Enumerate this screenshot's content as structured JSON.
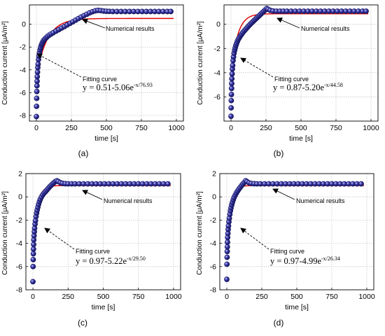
{
  "chart_data": [
    {
      "panel_label": "(a)",
      "type": "scatter",
      "xlabel": "time [s]",
      "ylabel": "Conduction current [μA/m²]",
      "xlim": [
        -50,
        1050
      ],
      "ylim": [
        -8.5,
        1.7
      ],
      "xticks": [
        0,
        250,
        500,
        750,
        1000
      ],
      "yticks": [
        -8,
        -6,
        -4,
        -2,
        0
      ],
      "grid": true,
      "series": [
        {
          "name": "Numerical results",
          "style": "markers",
          "x": [
            0,
            1,
            2,
            3,
            4,
            5,
            6,
            8,
            10,
            12,
            15,
            18,
            22,
            26,
            30,
            35,
            40,
            46,
            52,
            60,
            70,
            80,
            92,
            105,
            120,
            140,
            160,
            180,
            200,
            220,
            240,
            260,
            280,
            300,
            320,
            340,
            360,
            380,
            400,
            420,
            440,
            460,
            480,
            500,
            520,
            545,
            575,
            605,
            635,
            665,
            695,
            725,
            755,
            785,
            815,
            845,
            875,
            905,
            935,
            960
          ],
          "y": [
            -8.1,
            -7.2,
            -6.5,
            -5.9,
            -5.4,
            -5.0,
            -4.6,
            -4.2,
            -3.8,
            -3.5,
            -3.1,
            -2.8,
            -2.5,
            -2.25,
            -2.05,
            -1.85,
            -1.7,
            -1.55,
            -1.42,
            -1.3,
            -1.18,
            -1.06,
            -0.95,
            -0.85,
            -0.74,
            -0.6,
            -0.47,
            -0.33,
            -0.2,
            -0.06,
            0.08,
            0.22,
            0.36,
            0.5,
            0.63,
            0.76,
            0.88,
            1.0,
            1.1,
            1.18,
            1.22,
            1.2,
            1.16,
            1.14,
            1.13,
            1.12,
            1.12,
            1.12,
            1.12,
            1.12,
            1.12,
            1.12,
            1.12,
            1.12,
            1.12,
            1.12,
            1.12,
            1.12,
            1.12,
            1.12
          ]
        },
        {
          "name": "Fitting curve",
          "style": "line",
          "color": "#e00000",
          "fit": {
            "a": 0.51,
            "b": 5.06,
            "tau": 76.93
          },
          "x_range": [
            0,
            980
          ]
        }
      ],
      "annotations": [
        {
          "text": "Numerical results"
        },
        {
          "text": "Fitting curve"
        },
        {
          "text_parts": {
            "base": "y = 0.51-5.06e",
            "exp": "-x/76.93"
          }
        }
      ]
    },
    {
      "panel_label": "(b)",
      "type": "scatter",
      "xlabel": "time [s]",
      "ylabel": "Conduction current [μA/m²]",
      "xlim": [
        -50,
        1050
      ],
      "ylim": [
        -8.0,
        1.6
      ],
      "xticks": [
        0,
        250,
        500,
        750,
        1000
      ],
      "yticks": [
        -6,
        -4,
        -2,
        0
      ],
      "grid": true,
      "series": [
        {
          "name": "Numerical results",
          "style": "markers",
          "x": [
            0,
            1,
            2,
            3,
            4,
            5,
            6,
            8,
            10,
            12,
            15,
            18,
            22,
            26,
            30,
            35,
            40,
            46,
            52,
            60,
            68,
            76,
            85,
            95,
            105,
            115,
            125,
            135,
            145,
            155,
            165,
            175,
            185,
            195,
            205,
            215,
            225,
            235,
            245,
            255,
            265,
            280,
            300,
            325,
            350,
            375,
            400,
            430,
            460,
            490,
            520,
            550,
            580,
            610,
            640,
            670,
            700,
            730,
            760,
            790,
            820,
            850,
            880,
            910,
            940,
            965
          ],
          "y": [
            -7.6,
            -6.9,
            -6.3,
            -5.8,
            -5.3,
            -4.9,
            -4.5,
            -4.1,
            -3.7,
            -3.4,
            -3.0,
            -2.7,
            -2.4,
            -2.15,
            -1.95,
            -1.75,
            -1.58,
            -1.4,
            -1.25,
            -1.1,
            -0.95,
            -0.82,
            -0.68,
            -0.54,
            -0.41,
            -0.28,
            -0.15,
            -0.03,
            0.09,
            0.2,
            0.31,
            0.42,
            0.53,
            0.64,
            0.75,
            0.86,
            0.97,
            1.08,
            1.19,
            1.3,
            1.24,
            1.15,
            1.1,
            1.08,
            1.08,
            1.08,
            1.08,
            1.08,
            1.08,
            1.08,
            1.08,
            1.08,
            1.08,
            1.08,
            1.08,
            1.08,
            1.08,
            1.08,
            1.08,
            1.08,
            1.08,
            1.08,
            1.08,
            1.08,
            1.08,
            1.08
          ]
        },
        {
          "name": "Fitting curve",
          "style": "line",
          "color": "#e00000",
          "fit": {
            "a": 0.87,
            "b": 5.2,
            "tau": 44.58
          },
          "x_range": [
            0,
            980
          ]
        }
      ],
      "annotations": [
        {
          "text": "Numerical results"
        },
        {
          "text": "Fitting curve"
        },
        {
          "text_parts": {
            "base": "y = 0.87-5.20e",
            "exp": "-x/44.58"
          }
        }
      ]
    },
    {
      "panel_label": "(c)",
      "type": "scatter",
      "xlabel": "time [s]",
      "ylabel": "Conduction current [μA/m²]",
      "xlim": [
        -50,
        1050
      ],
      "ylim": [
        -8,
        2
      ],
      "xticks": [
        0,
        250,
        500,
        750,
        1000
      ],
      "yticks": [
        -8,
        -6,
        -4,
        -2,
        0,
        2
      ],
      "grid": true,
      "series": [
        {
          "name": "Numerical results",
          "style": "markers",
          "x": [
            0,
            1,
            2,
            3,
            4,
            5,
            6,
            8,
            10,
            12,
            15,
            18,
            22,
            26,
            30,
            35,
            40,
            46,
            52,
            60,
            70,
            80,
            90,
            100,
            110,
            120,
            130,
            140,
            150,
            160,
            170,
            180,
            195,
            210,
            230,
            250,
            275,
            300,
            330,
            360,
            390,
            420,
            450,
            480,
            510,
            540,
            570,
            600,
            630,
            660,
            690,
            720,
            750,
            780,
            810,
            840,
            870,
            900,
            930,
            960
          ],
          "y": [
            -7.3,
            -6.0,
            -5.4,
            -4.9,
            -4.5,
            -4.1,
            -3.7,
            -3.35,
            -3.0,
            -2.7,
            -2.35,
            -2.05,
            -1.7,
            -1.4,
            -1.15,
            -0.9,
            -0.65,
            -0.42,
            -0.22,
            -0.02,
            0.18,
            0.33,
            0.46,
            0.6,
            0.74,
            0.88,
            1.0,
            1.12,
            1.22,
            1.32,
            1.38,
            1.32,
            1.22,
            1.16,
            1.13,
            1.12,
            1.12,
            1.12,
            1.12,
            1.12,
            1.12,
            1.12,
            1.12,
            1.12,
            1.12,
            1.12,
            1.12,
            1.12,
            1.12,
            1.12,
            1.12,
            1.12,
            1.12,
            1.12,
            1.12,
            1.12,
            1.12,
            1.12,
            1.12,
            1.12
          ]
        },
        {
          "name": "Fitting curve",
          "style": "line",
          "color": "#e00000",
          "fit": {
            "a": 0.97,
            "b": 5.22,
            "tau": 29.5
          },
          "x_range": [
            0,
            980
          ]
        }
      ],
      "annotations": [
        {
          "text": "Numerical results"
        },
        {
          "text": "Fitting curve"
        },
        {
          "text_parts": {
            "base": "y = 0.97-5.22e",
            "exp": "-x/29.50"
          }
        }
      ]
    },
    {
      "panel_label": "(d)",
      "type": "scatter",
      "xlabel": "time [s]",
      "ylabel": "Conduction current [μA/m²]",
      "xlim": [
        -50,
        1050
      ],
      "ylim": [
        -8,
        2
      ],
      "xticks": [
        0,
        250,
        500,
        750,
        1000
      ],
      "yticks": [
        -8,
        -6,
        -4,
        -2,
        0,
        2
      ],
      "grid": true,
      "series": [
        {
          "name": "Numerical results",
          "style": "markers",
          "x": [
            0,
            1,
            2,
            3,
            4,
            5,
            6,
            8,
            10,
            12,
            15,
            18,
            22,
            26,
            30,
            35,
            40,
            46,
            52,
            60,
            68,
            76,
            85,
            95,
            105,
            115,
            125,
            135,
            145,
            160,
            175,
            195,
            215,
            240,
            270,
            300,
            330,
            360,
            390,
            420,
            450,
            480,
            510,
            540,
            570,
            600,
            630,
            660,
            690,
            720,
            750,
            780,
            810,
            840,
            870,
            900,
            930,
            960
          ],
          "y": [
            -7.1,
            -5.8,
            -5.2,
            -4.7,
            -4.3,
            -3.9,
            -3.5,
            -3.15,
            -2.8,
            -2.5,
            -2.15,
            -1.85,
            -1.5,
            -1.2,
            -0.95,
            -0.7,
            -0.48,
            -0.26,
            -0.06,
            0.14,
            0.32,
            0.48,
            0.64,
            0.8,
            0.96,
            1.1,
            1.24,
            1.38,
            1.3,
            1.2,
            1.15,
            1.13,
            1.12,
            1.12,
            1.12,
            1.12,
            1.12,
            1.12,
            1.12,
            1.12,
            1.12,
            1.12,
            1.12,
            1.12,
            1.12,
            1.12,
            1.12,
            1.12,
            1.12,
            1.12,
            1.12,
            1.12,
            1.12,
            1.12,
            1.12,
            1.12,
            1.12,
            1.12
          ]
        },
        {
          "name": "Fitting curve",
          "style": "line",
          "color": "#e00000",
          "fit": {
            "a": 0.97,
            "b": 4.99,
            "tau": 26.34
          },
          "x_range": [
            0,
            980
          ]
        }
      ],
      "annotations": [
        {
          "text": "Numerical results"
        },
        {
          "text": "Fitting curve"
        },
        {
          "text_parts": {
            "base": "y = 0.97-4.99e",
            "exp": "-x/26.34"
          }
        }
      ]
    }
  ],
  "colors": {
    "marker_fill": "#3a3aa8",
    "marker_edge": "#15155e",
    "fit_line": "#e00000",
    "grid": "#c8c8c8",
    "axes": "#000000",
    "annotation_arrow": "#000000"
  }
}
